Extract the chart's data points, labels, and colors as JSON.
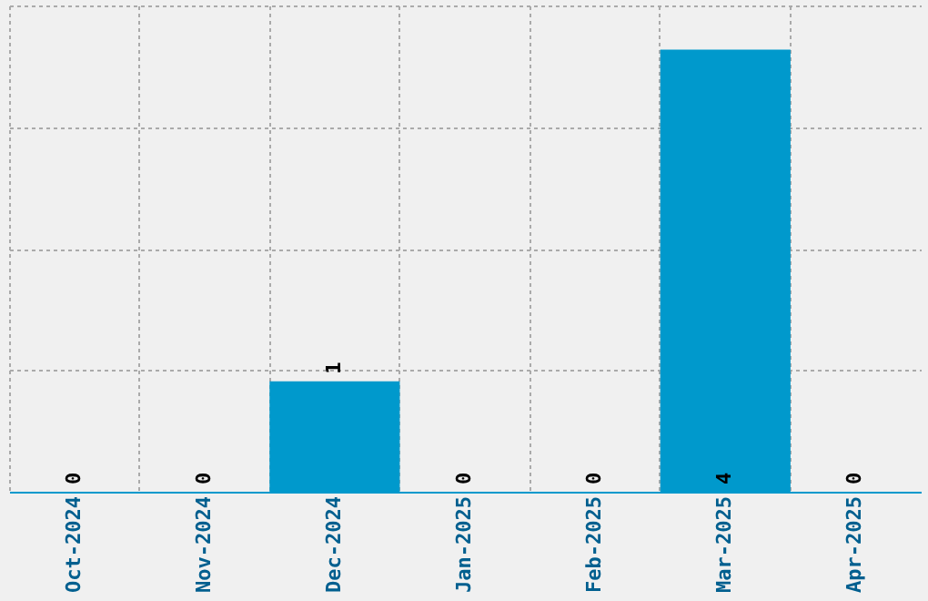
{
  "chart_data": {
    "type": "bar",
    "categories": [
      "Oct-2024",
      "Nov-2024",
      "Dec-2024",
      "Jan-2025",
      "Feb-2025",
      "Mar-2025",
      "Apr-2025"
    ],
    "values": [
      0,
      0,
      1,
      0,
      0,
      4,
      0
    ],
    "color": "#0099cc",
    "ylim": [
      0,
      4.4
    ],
    "yticks": [
      {
        "value": 0,
        "label": null
      },
      {
        "value": 1.1,
        "label": null
      },
      {
        "value": 2.2,
        "label": null
      },
      {
        "value": 3.3,
        "label": null
      },
      {
        "value": 4.4,
        "label": null
      }
    ],
    "grid": true,
    "data_labels": true,
    "tick_labels": "x"
  }
}
